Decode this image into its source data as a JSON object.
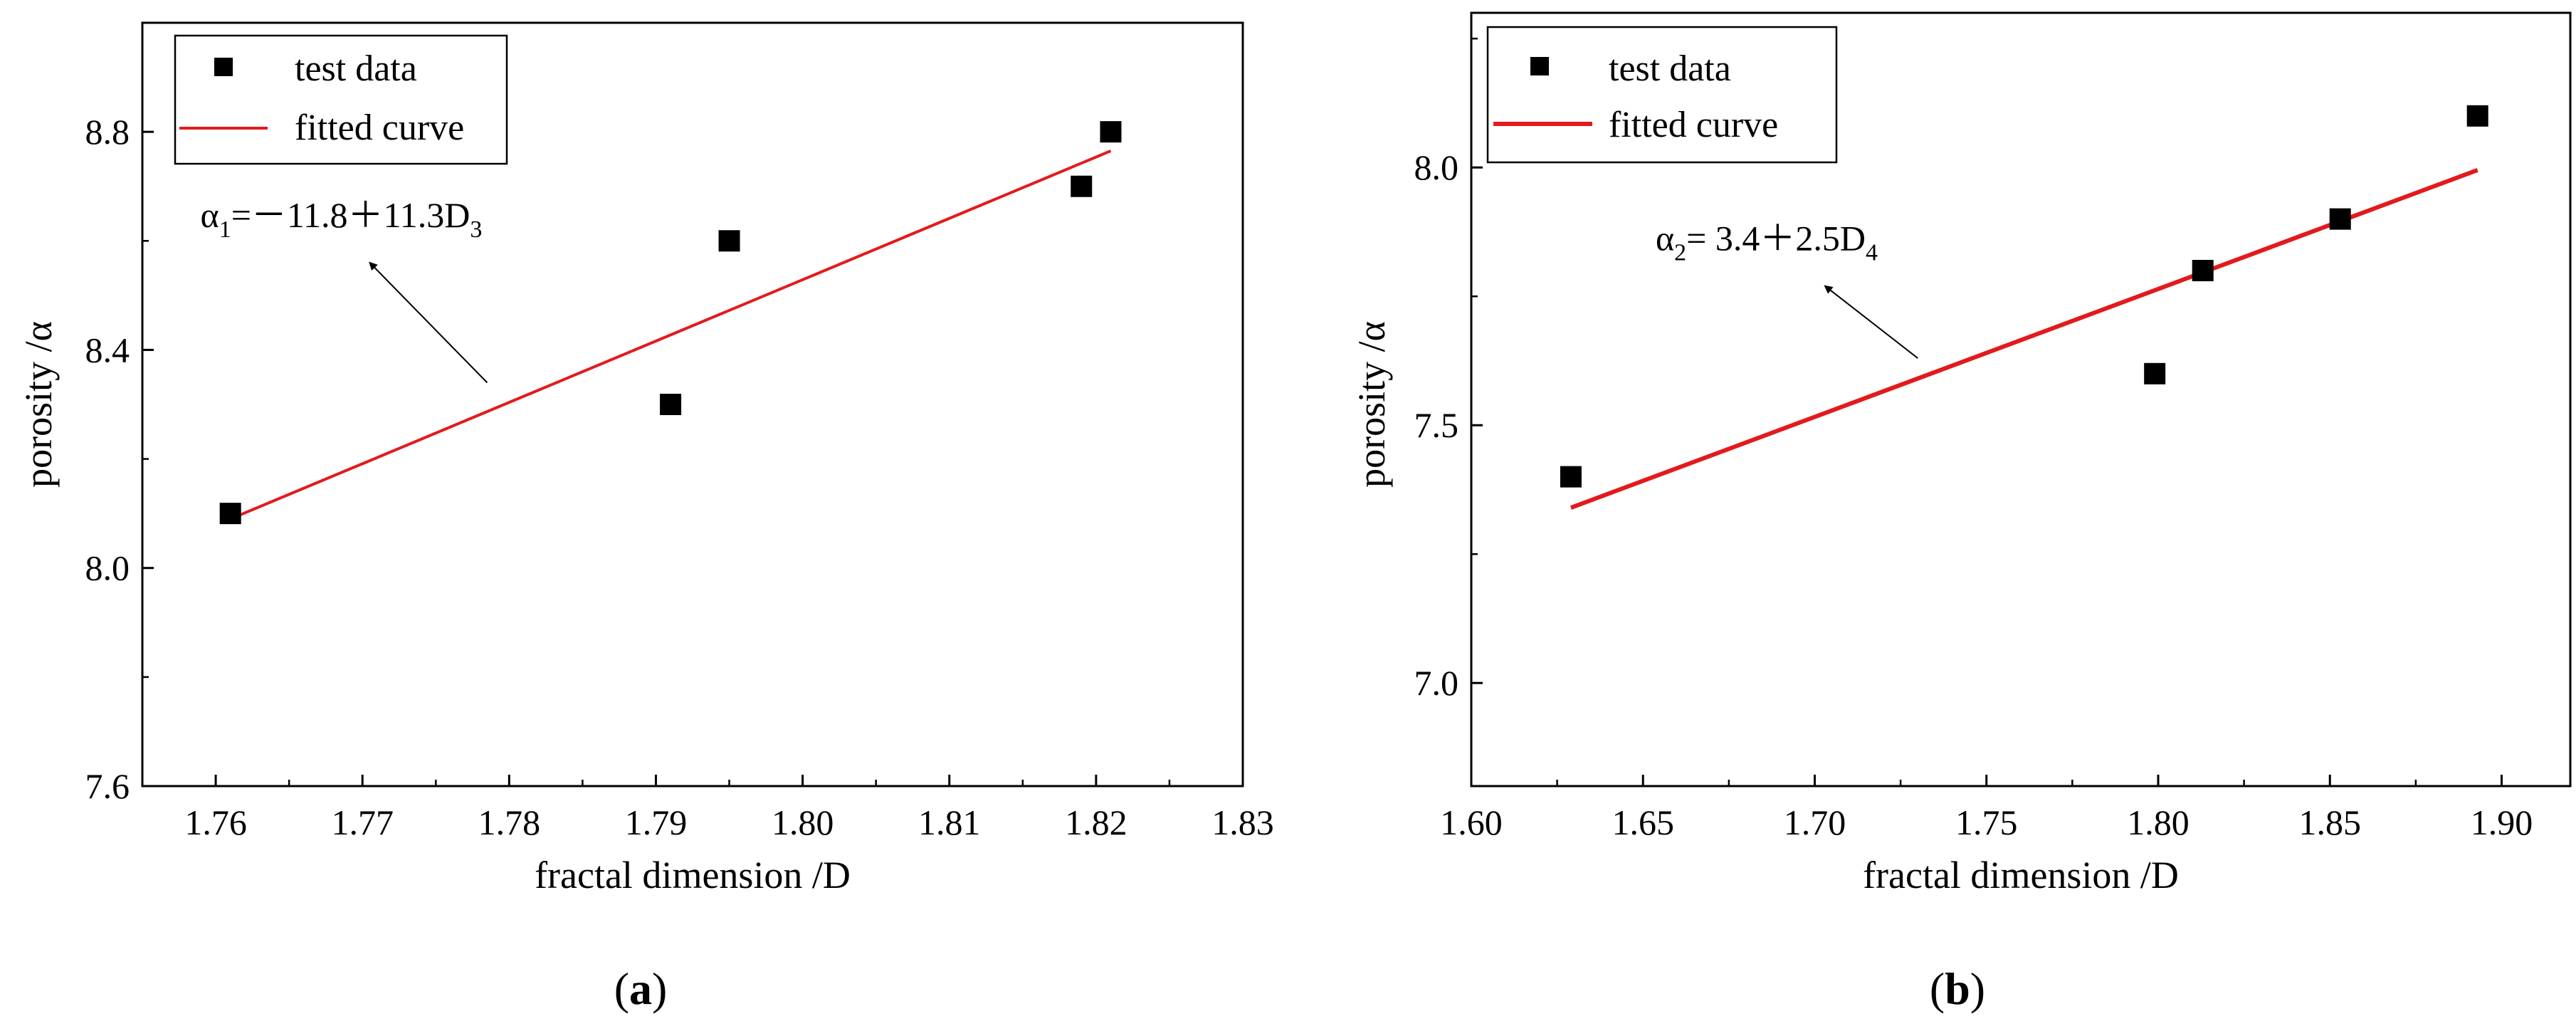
{
  "chart_data": [
    {
      "type": "scatter",
      "panel": "(a)",
      "panel_letter": "a",
      "xlabel": "fractal dimension /D",
      "ylabel": "porosity /α",
      "xlim": [
        1.755,
        1.83
      ],
      "ylim": [
        7.6,
        9.0
      ],
      "xticks": [
        1.76,
        1.77,
        1.78,
        1.79,
        1.8,
        1.81,
        1.82,
        1.83
      ],
      "xtick_labels": [
        "1.76",
        "1.77",
        "1.78",
        "1.79",
        "1.80",
        "1.81",
        "1.82",
        "1.83"
      ],
      "yticks": [
        7.6,
        8.0,
        8.4,
        8.8
      ],
      "ytick_labels": [
        "7.6",
        "8.0",
        "8.4",
        "8.8"
      ],
      "series": [
        {
          "name": "test data",
          "kind": "points",
          "color": "#000000",
          "x": [
            1.761,
            1.791,
            1.795,
            1.819,
            1.821
          ],
          "y": [
            8.1,
            8.3,
            8.6,
            8.7,
            8.8
          ]
        },
        {
          "name": "fitted curve",
          "kind": "line",
          "color": "#e31a1c",
          "x": [
            1.761,
            1.821
          ],
          "y": [
            8.09,
            8.765
          ]
        }
      ],
      "legend": [
        "test data",
        "fitted curve"
      ],
      "legend_position": "top-left",
      "annotation": {
        "alpha": "α",
        "alpha_sub": "1",
        "rest": "=－11.8＋11.3D",
        "d_sub": "3",
        "arrow_from": [
          1.7785,
          8.34
        ],
        "arrow_to": [
          1.7705,
          8.56
        ]
      }
    },
    {
      "type": "scatter",
      "panel": "(b)",
      "panel_letter": "b",
      "xlabel": "fractal dimension /D",
      "ylabel": "porosity /α",
      "xlim": [
        1.6,
        1.92
      ],
      "ylim": [
        6.8,
        8.3
      ],
      "xticks": [
        1.6,
        1.65,
        1.7,
        1.75,
        1.8,
        1.85,
        1.9
      ],
      "xtick_labels": [
        "1.60",
        "1.65",
        "1.70",
        "1.75",
        "1.80",
        "1.85",
        "1.90"
      ],
      "yticks": [
        7.0,
        7.5,
        8.0
      ],
      "ytick_labels": [
        "7.0",
        "7.5",
        "8.0"
      ],
      "series": [
        {
          "name": "test data",
          "kind": "points",
          "color": "#000000",
          "x": [
            1.629,
            1.799,
            1.813,
            1.853,
            1.893
          ],
          "y": [
            7.4,
            7.6,
            7.8,
            7.9,
            8.1
          ]
        },
        {
          "name": "fitted curve",
          "kind": "line",
          "color": "#e31a1c",
          "x": [
            1.629,
            1.893
          ],
          "y": [
            7.34,
            7.995
          ]
        }
      ],
      "legend": [
        "test data",
        "fitted curve"
      ],
      "legend_position": "top-left",
      "annotation": {
        "alpha": "α",
        "alpha_sub": "2",
        "rest": "= 3.4＋2.5D",
        "d_sub": "4",
        "arrow_from": [
          1.73,
          7.63
        ],
        "arrow_to": [
          1.703,
          7.77
        ]
      }
    }
  ]
}
